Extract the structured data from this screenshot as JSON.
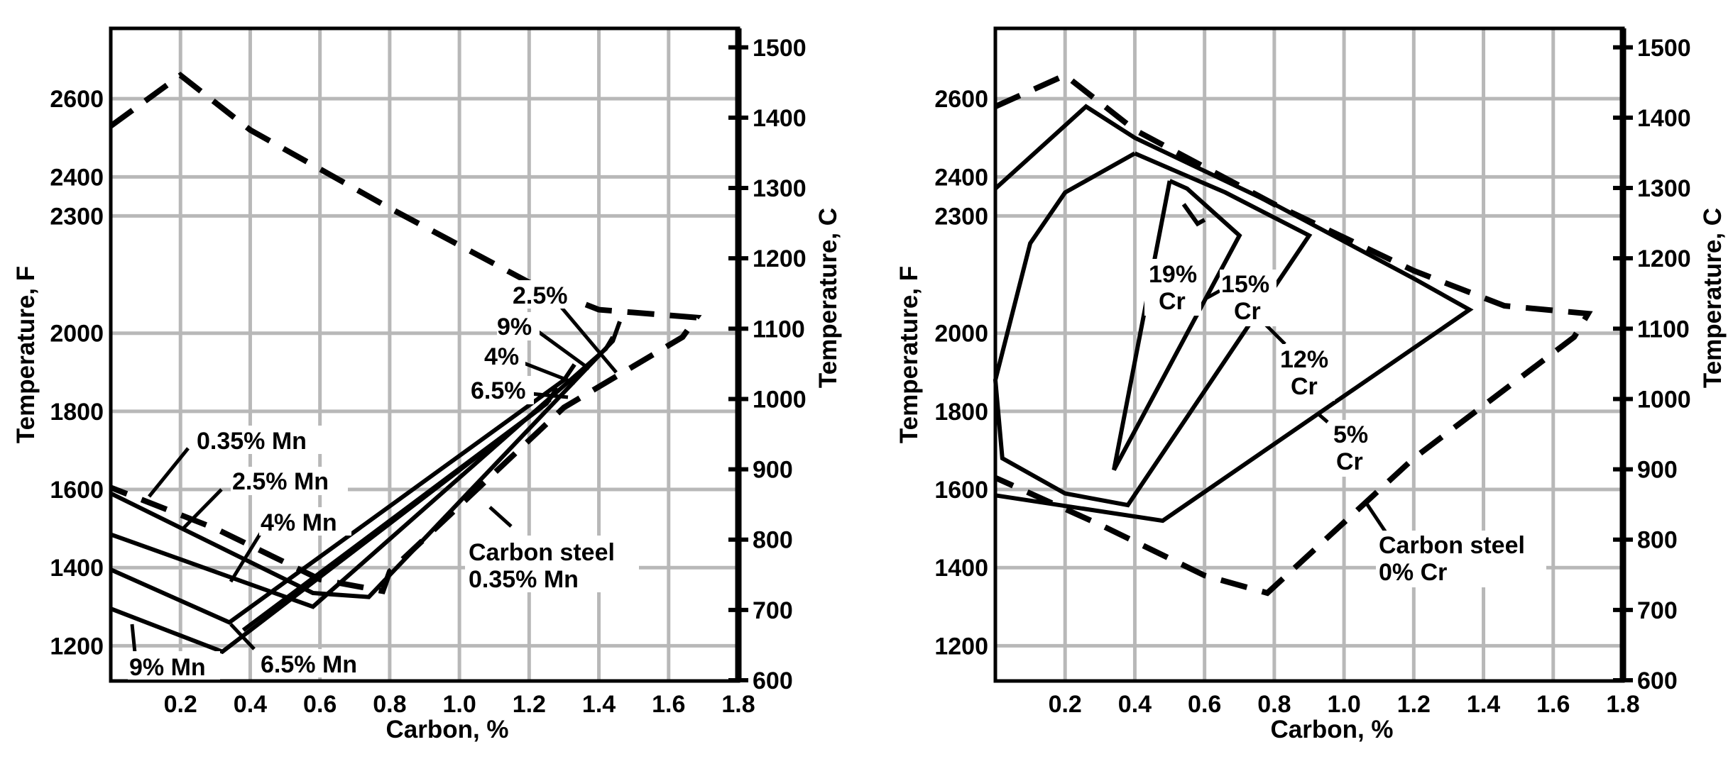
{
  "chart_data": [
    {
      "type": "line",
      "xlabel": "Carbon, %",
      "ylabel": "Temperature, F",
      "ylabel_right": "Temperature, C",
      "xlim": [
        0,
        1.8
      ],
      "ylim": [
        1110,
        2780
      ],
      "ylim_right": [
        599,
        1527
      ],
      "grid": true,
      "x_ticks": [
        0.2,
        0.4,
        0.6,
        0.8,
        1.0,
        1.2,
        1.4,
        1.6,
        1.8
      ],
      "x_tick_labels": [
        "0.2",
        "0.4",
        "0.6",
        "0.8",
        "1.0",
        "1.2",
        "1.4",
        "1.6",
        "1.8"
      ],
      "y_ticks": [
        1200,
        1400,
        1600,
        1800,
        2000,
        2300,
        2400,
        2600
      ],
      "y_tick_labels": [
        "1200",
        "1400",
        "1600",
        "1800",
        "2000",
        "2300",
        "2400",
        "2600"
      ],
      "y_right_ticks": [
        600,
        700,
        800,
        900,
        1000,
        1100,
        1200,
        1300,
        1400,
        1500
      ],
      "y_right_tick_labels": [
        "600",
        "700",
        "800",
        "900",
        "1000",
        "1100",
        "1200",
        "1300",
        "1400",
        "1500"
      ],
      "series": [
        {
          "name": "Carbon steel 0.35% Mn",
          "style": "dashed",
          "x": [
            0,
            0.2,
            0.4,
            0.8,
            1.2,
            1.4,
            1.68,
            1.64,
            1.3,
            0.8,
            0.78,
            0.6,
            0.3,
            0
          ],
          "y": [
            2530,
            2660,
            2520,
            2320,
            2130,
            2060,
            2040,
            1990,
            1810,
            1390,
            1340,
            1370,
            1500,
            1605
          ]
        },
        {
          "name": "0.35% Mn",
          "x": [
            0,
            0.58,
            0.74,
            1.44,
            1.46
          ],
          "y": [
            1590,
            1335,
            1325,
            1980,
            2030
          ]
        },
        {
          "name": "2.5% Mn",
          "x": [
            0,
            0.58,
            1.42,
            1.44
          ],
          "y": [
            1485,
            1300,
            1960,
            1990
          ]
        },
        {
          "name": "4% Mn",
          "x": [
            0,
            0.34,
            1.3,
            1.33
          ],
          "y": [
            1395,
            1260,
            1880,
            1920
          ]
        },
        {
          "name": "6.5% Mn",
          "x": [
            0,
            0.32,
            1.25,
            1.28
          ],
          "y": [
            1295,
            1185,
            1820,
            1860
          ]
        },
        {
          "name": "9% Mn",
          "x": [
            0.38,
            1.22,
            1.26
          ],
          "y": [
            1240,
            1800,
            1830
          ]
        }
      ],
      "annotations": [
        "2.5%",
        "9%",
        "4%",
        "6.5%",
        "0.35% Mn",
        "2.5% Mn",
        "4% Mn",
        "6.5% Mn",
        "9% Mn",
        "Carbon steel",
        "0.35% Mn"
      ]
    },
    {
      "type": "line",
      "xlabel": "Carbon, %",
      "ylabel": "Temperature, F",
      "ylabel_right": "Temperature, C",
      "xlim": [
        0,
        1.8
      ],
      "ylim": [
        1110,
        2780
      ],
      "ylim_right": [
        599,
        1527
      ],
      "grid": true,
      "x_ticks": [
        0.2,
        0.4,
        0.6,
        0.8,
        1.0,
        1.2,
        1.4,
        1.6,
        1.8
      ],
      "x_tick_labels": [
        "0.2",
        "0.4",
        "0.6",
        "0.8",
        "1.0",
        "1.2",
        "1.4",
        "1.6",
        "1.8"
      ],
      "y_ticks": [
        1200,
        1400,
        1600,
        1800,
        2000,
        2300,
        2400,
        2600
      ],
      "y_tick_labels": [
        "1200",
        "1400",
        "1600",
        "1800",
        "2000",
        "2300",
        "2400",
        "2600"
      ],
      "y_right_ticks": [
        600,
        700,
        800,
        900,
        1000,
        1100,
        1200,
        1300,
        1400,
        1500
      ],
      "y_right_tick_labels": [
        "600",
        "700",
        "800",
        "900",
        "1000",
        "1100",
        "1200",
        "1300",
        "1400",
        "1500"
      ],
      "series": [
        {
          "name": "Carbon steel 0% Cr",
          "style": "dashed",
          "x": [
            0,
            0.2,
            0.4,
            0.8,
            1.2,
            1.46,
            1.7,
            1.66,
            1.2,
            0.78,
            0.6,
            0.3,
            0
          ],
          "y": [
            2580,
            2660,
            2520,
            2330,
            2160,
            2070,
            2050,
            1990,
            1680,
            1335,
            1380,
            1510,
            1630
          ]
        },
        {
          "name": "5% Cr",
          "x": [
            0,
            0.26,
            0.4,
            0.8,
            1.2,
            1.36,
            0.48,
            0
          ],
          "y": [
            2370,
            2580,
            2500,
            2330,
            2140,
            2060,
            1520,
            1585
          ]
        },
        {
          "name": "12% Cr",
          "x": [
            0.4,
            0.66,
            0.9,
            0.38,
            0.2,
            0.02,
            0,
            0.1,
            0.2,
            0.4
          ],
          "y": [
            2460,
            2360,
            2250,
            1560,
            1590,
            1680,
            1880,
            2230,
            2360,
            2460
          ]
        },
        {
          "name": "15% Cr",
          "x": [
            0.5,
            0.55,
            0.7,
            0.34,
            0.5
          ],
          "y": [
            2390,
            2370,
            2250,
            1650,
            2390
          ]
        },
        {
          "name": "19% Cr",
          "x": [
            0.54,
            0.58,
            0.6
          ],
          "y": [
            2330,
            2280,
            2290
          ]
        }
      ],
      "annotations": [
        "19%",
        "Cr",
        "15%",
        "Cr",
        "12%",
        "Cr",
        "5%",
        "Cr",
        "Carbon steel",
        "0% Cr"
      ]
    }
  ]
}
